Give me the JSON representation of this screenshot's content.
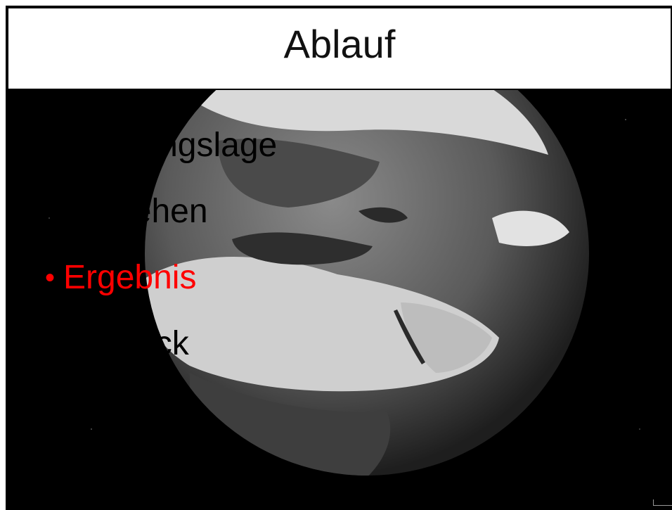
{
  "slide": {
    "title": "Ablauf",
    "bullets": [
      {
        "label": "Ausgangslage",
        "color": "#000000",
        "active": false
      },
      {
        "label": "Vorgehen",
        "color": "#000000",
        "active": false
      },
      {
        "label": "Ergebnis",
        "color": "#ff0000",
        "active": true
      },
      {
        "label": "Ausblick",
        "color": "#000000",
        "active": false
      }
    ],
    "bullet_glyph": "•",
    "background": "earth-globe-image"
  },
  "colors": {
    "background": "#000000",
    "title_bar": "#ffffff",
    "highlight": "#ff0000"
  }
}
